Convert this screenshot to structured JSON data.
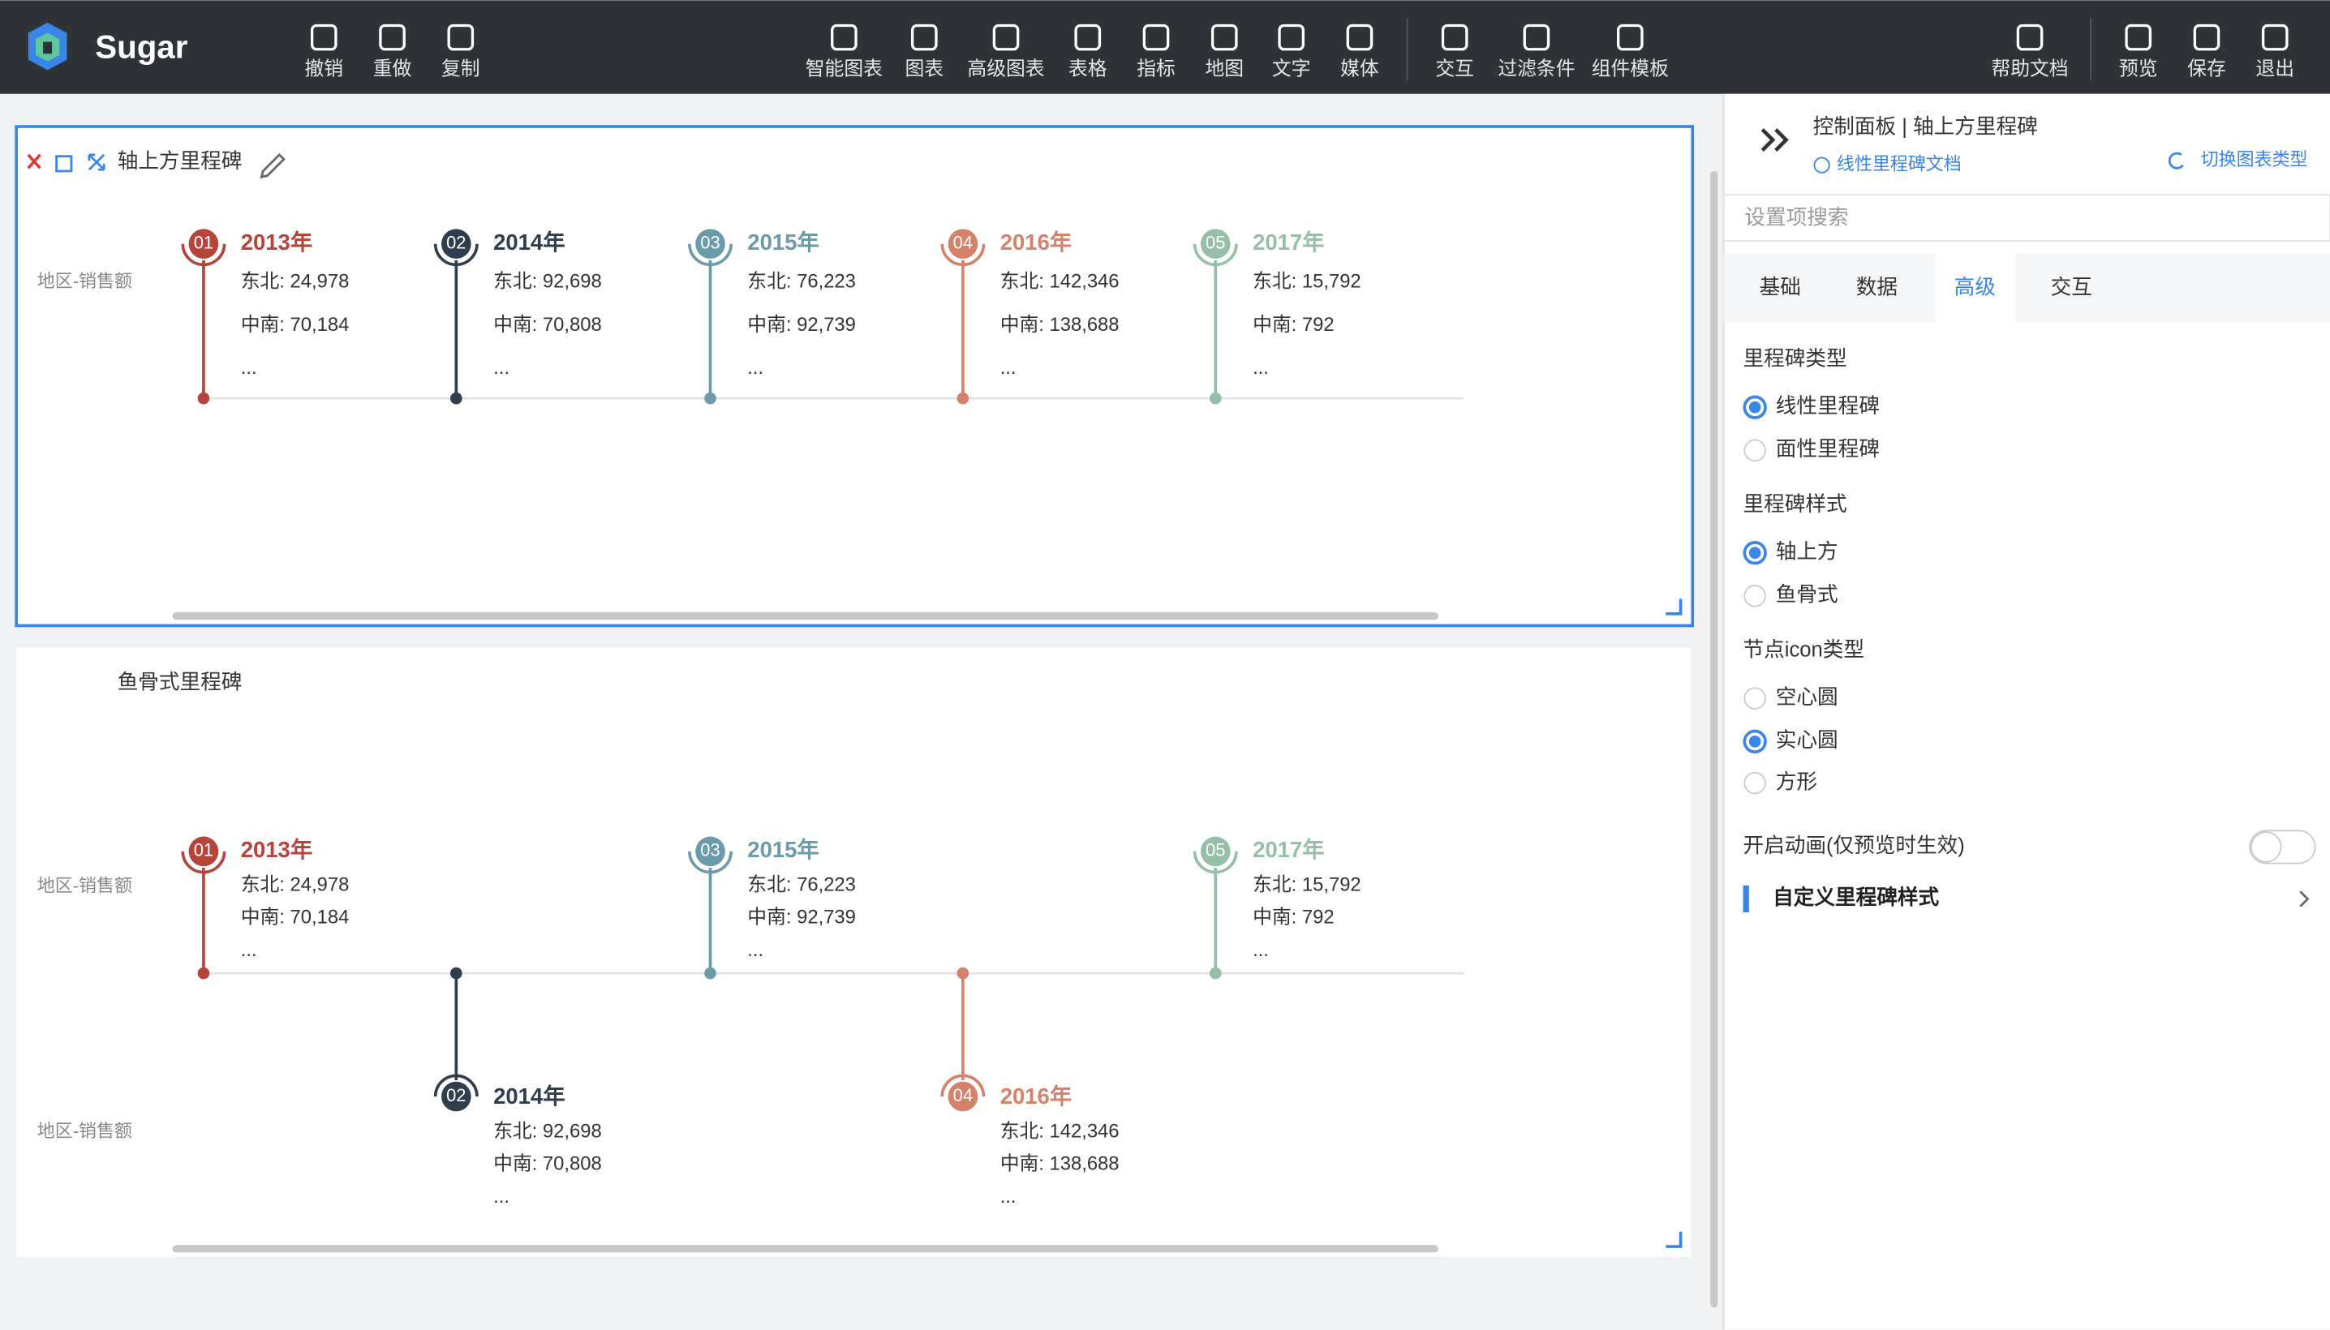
{
  "toolbar": {
    "brand": "Sugar",
    "left": [
      "撤销",
      "重做",
      "复制"
    ],
    "center": [
      "智能图表",
      "图表",
      "高级图表",
      "表格",
      "指标",
      "地图",
      "文字",
      "媒体"
    ],
    "group": [
      "交互",
      "过滤条件",
      "组件模板"
    ],
    "right": [
      "帮助文档",
      "预览",
      "保存",
      "退出"
    ]
  },
  "milestones": [
    {
      "index": "01",
      "year": "2013年",
      "color": "#b5443a",
      "lines": [
        "东北: 24,978",
        "中南: 70,184",
        "..."
      ]
    },
    {
      "index": "02",
      "year": "2014年",
      "color": "#2f3e4e",
      "lines": [
        "东北: 92,698",
        "中南: 70,808",
        "..."
      ]
    },
    {
      "index": "03",
      "year": "2015年",
      "color": "#6b9aab",
      "lines": [
        "东北: 76,223",
        "中南: 92,739",
        "..."
      ]
    },
    {
      "index": "04",
      "year": "2016年",
      "color": "#d4826a",
      "lines": [
        "东北: 142,346",
        "中南: 138,688",
        "..."
      ]
    },
    {
      "index": "05",
      "year": "2017年",
      "color": "#95bfa6",
      "lines": [
        "东北: 15,792",
        "中南: 792",
        "..."
      ]
    }
  ],
  "widgets": [
    {
      "title": "轴上方里程碑",
      "axis_label": "地区-销售额",
      "style": "above"
    },
    {
      "title": "鱼骨式里程碑",
      "axis_label": "地区-销售额",
      "style": "fishbone"
    }
  ],
  "panel": {
    "title": "控制面板 | 轴上方里程碑",
    "doc_link": "线性里程碑文档",
    "switch": "切换图表类型",
    "search_placeholder": "设置项搜索",
    "tabs": [
      "基础",
      "数据",
      "高级",
      "交互"
    ],
    "active_tab": 2,
    "sections": [
      {
        "label": "里程碑类型",
        "options": [
          "线性里程碑",
          "面性里程碑"
        ],
        "selected": 0
      },
      {
        "label": "里程碑样式",
        "options": [
          "轴上方",
          "鱼骨式"
        ],
        "selected": 0
      },
      {
        "label": "节点icon类型",
        "options": [
          "空心圆",
          "实心圆",
          "方形"
        ],
        "selected": 1
      }
    ],
    "toggle_label": "开启动画(仅预览时生效)",
    "custom": "自定义里程碑样式"
  }
}
